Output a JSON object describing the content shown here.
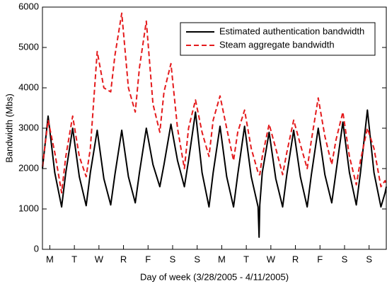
{
  "chart_data": {
    "type": "line",
    "x_label": "Day of week (3/28/2005 - 4/11/2005)",
    "y_label": "Bandwidth (Mbs)",
    "x": [
      0,
      0.23,
      0.5,
      0.78,
      0.95,
      1.23,
      1.5,
      1.78,
      1.95,
      2.23,
      2.5,
      2.78,
      2.95,
      3.23,
      3.5,
      3.78,
      3.95,
      4.23,
      4.5,
      4.78,
      4.95,
      5.23,
      5.5,
      5.78,
      5.95,
      6.23,
      6.5,
      6.78,
      6.95,
      7.23,
      7.5,
      7.78,
      7.95,
      8.23,
      8.5,
      8.78,
      8.82,
      8.85,
      8.95,
      9.23,
      9.5,
      9.78,
      9.95,
      10.23,
      10.5,
      10.78,
      10.95,
      11.23,
      11.5,
      11.78,
      11.95,
      12.23,
      12.5,
      12.78,
      12.95,
      13.23,
      13.5,
      13.78,
      13.95,
      14
    ],
    "series": [
      {
        "name": "Estimated authentication bandwidth",
        "color": "#000000",
        "dash": false,
        "values": [
          2000,
          3300,
          1900,
          1050,
          1900,
          3000,
          1800,
          1080,
          1900,
          2950,
          1750,
          1100,
          1850,
          2950,
          1800,
          1150,
          1900,
          3000,
          2100,
          1550,
          2100,
          3100,
          2200,
          1550,
          2200,
          3400,
          1900,
          1050,
          1900,
          3050,
          1800,
          1050,
          1850,
          3050,
          1800,
          1050,
          300,
          1100,
          1900,
          2900,
          1750,
          1050,
          1850,
          2950,
          1800,
          1050,
          1850,
          3000,
          1850,
          1150,
          1900,
          3150,
          1900,
          1100,
          1900,
          3450,
          1900,
          1050,
          1400,
          1550
        ]
      },
      {
        "name": "Steam aggregate bandwidth",
        "color": "#e41a1c",
        "dash": true,
        "values": [
          2050,
          3200,
          2400,
          1400,
          2300,
          3300,
          2300,
          1800,
          2500,
          4900,
          4000,
          3900,
          4800,
          5850,
          4000,
          3400,
          4500,
          5650,
          3600,
          2900,
          3900,
          4600,
          3000,
          2000,
          3000,
          3700,
          2900,
          2300,
          3200,
          3800,
          3000,
          2200,
          2900,
          3450,
          2500,
          1900,
          1850,
          1850,
          2300,
          3100,
          2500,
          1850,
          2400,
          3200,
          2600,
          2000,
          2700,
          3750,
          2800,
          2100,
          2700,
          3400,
          2300,
          1600,
          2200,
          3000,
          2500,
          1550,
          1700,
          1600
        ]
      }
    ],
    "xlim": [
      0,
      14
    ],
    "xticks": [
      {
        "value": 0.3,
        "label": "M"
      },
      {
        "value": 1.3,
        "label": "T"
      },
      {
        "value": 2.3,
        "label": "W"
      },
      {
        "value": 3.3,
        "label": "R"
      },
      {
        "value": 4.3,
        "label": "F"
      },
      {
        "value": 5.3,
        "label": "S"
      },
      {
        "value": 6.3,
        "label": "S"
      },
      {
        "value": 7.3,
        "label": "M"
      },
      {
        "value": 8.3,
        "label": "T"
      },
      {
        "value": 9.3,
        "label": "W"
      },
      {
        "value": 10.3,
        "label": "R"
      },
      {
        "value": 11.3,
        "label": "F"
      },
      {
        "value": 12.3,
        "label": "S"
      },
      {
        "value": 13.3,
        "label": "S"
      }
    ],
    "ylim": [
      0,
      6000
    ],
    "yticks": [
      0,
      1000,
      2000,
      3000,
      4000,
      5000,
      6000
    ],
    "legend": "upper-right",
    "grid": false
  }
}
